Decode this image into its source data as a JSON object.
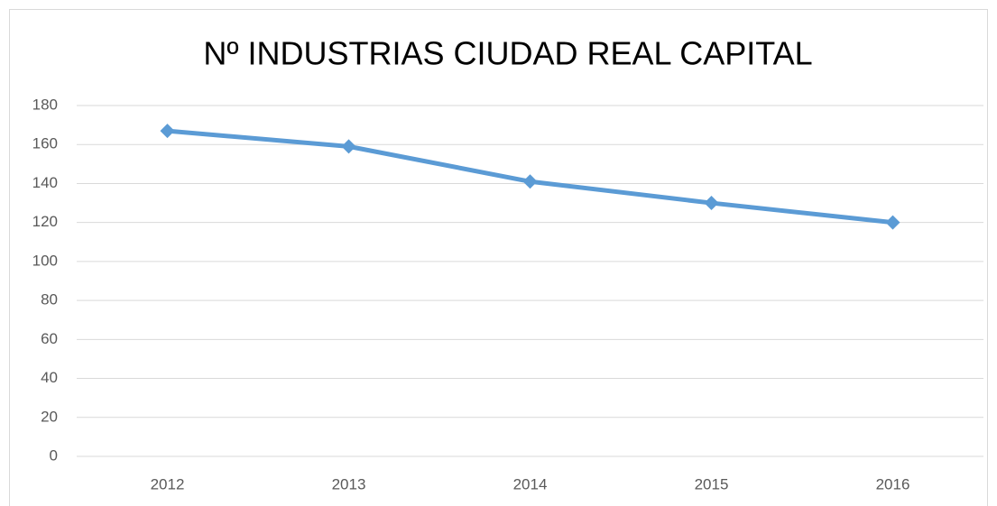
{
  "chart_data": {
    "type": "line",
    "title": "Nº INDUSTRIAS CIUDAD REAL CAPITAL",
    "categories": [
      "2012",
      "2013",
      "2014",
      "2015",
      "2016"
    ],
    "values": [
      167,
      159,
      141,
      130,
      120
    ],
    "color": "#5b9bd5",
    "ylim": [
      0,
      180
    ],
    "yticks": [
      0,
      20,
      40,
      60,
      80,
      100,
      120,
      140,
      160,
      180
    ],
    "grid": true
  }
}
